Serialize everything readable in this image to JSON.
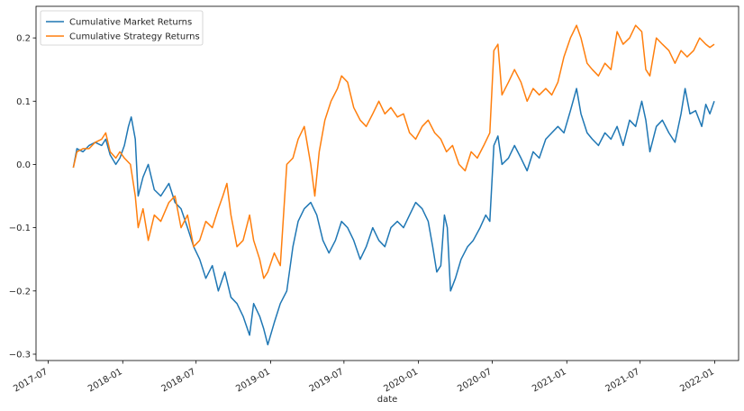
{
  "chart_data": {
    "type": "line",
    "title": "",
    "xlabel": "date",
    "ylabel": "",
    "xlim": [
      "2017-06-01",
      "2022-03-01"
    ],
    "ylim": [
      -0.31,
      0.25
    ],
    "grid": false,
    "legend_position": "top-left",
    "x_ticks": [
      {
        "date": "2017-07-01",
        "label": "2017-07"
      },
      {
        "date": "2018-01-01",
        "label": "2018-01"
      },
      {
        "date": "2018-07-01",
        "label": "2018-07"
      },
      {
        "date": "2019-01-01",
        "label": "2019-01"
      },
      {
        "date": "2019-07-01",
        "label": "2019-07"
      },
      {
        "date": "2020-01-01",
        "label": "2020-01"
      },
      {
        "date": "2020-07-01",
        "label": "2020-07"
      },
      {
        "date": "2021-01-01",
        "label": "2021-01"
      },
      {
        "date": "2021-07-01",
        "label": "2021-07"
      },
      {
        "date": "2022-01-01",
        "label": "2022-01"
      }
    ],
    "y_ticks": [
      {
        "value": 0.2,
        "label": "0.2"
      },
      {
        "value": 0.1,
        "label": "0.1"
      },
      {
        "value": 0.0,
        "label": "0.0"
      },
      {
        "value": -0.1,
        "label": "−0.1"
      },
      {
        "value": -0.2,
        "label": "−0.2"
      },
      {
        "value": -0.3,
        "label": "−0.3"
      }
    ],
    "series": [
      {
        "name": "Cumulative Market Returns",
        "color": "#1f77b4",
        "points": [
          [
            "2017-09-01",
            -0.005
          ],
          [
            "2017-09-10",
            0.025
          ],
          [
            "2017-09-25",
            0.02
          ],
          [
            "2017-10-10",
            0.03
          ],
          [
            "2017-10-25",
            0.035
          ],
          [
            "2017-11-10",
            0.03
          ],
          [
            "2017-11-20",
            0.04
          ],
          [
            "2017-12-01",
            0.015
          ],
          [
            "2017-12-15",
            0.0
          ],
          [
            "2017-12-25",
            0.01
          ],
          [
            "2018-01-05",
            0.03
          ],
          [
            "2018-01-15",
            0.06
          ],
          [
            "2018-01-22",
            0.075
          ],
          [
            "2018-02-01",
            0.04
          ],
          [
            "2018-02-08",
            -0.05
          ],
          [
            "2018-02-20",
            -0.02
          ],
          [
            "2018-03-05",
            0.0
          ],
          [
            "2018-03-20",
            -0.04
          ],
          [
            "2018-04-05",
            -0.05
          ],
          [
            "2018-04-25",
            -0.03
          ],
          [
            "2018-05-10",
            -0.06
          ],
          [
            "2018-05-25",
            -0.07
          ],
          [
            "2018-06-10",
            -0.1
          ],
          [
            "2018-06-25",
            -0.13
          ],
          [
            "2018-07-10",
            -0.15
          ],
          [
            "2018-07-25",
            -0.18
          ],
          [
            "2018-08-10",
            -0.16
          ],
          [
            "2018-08-25",
            -0.2
          ],
          [
            "2018-09-10",
            -0.17
          ],
          [
            "2018-09-25",
            -0.21
          ],
          [
            "2018-10-10",
            -0.22
          ],
          [
            "2018-10-25",
            -0.24
          ],
          [
            "2018-11-10",
            -0.27
          ],
          [
            "2018-11-20",
            -0.22
          ],
          [
            "2018-12-05",
            -0.24
          ],
          [
            "2018-12-15",
            -0.26
          ],
          [
            "2018-12-25",
            -0.285
          ],
          [
            "2019-01-10",
            -0.25
          ],
          [
            "2019-01-25",
            -0.22
          ],
          [
            "2019-02-10",
            -0.2
          ],
          [
            "2019-02-25",
            -0.13
          ],
          [
            "2019-03-10",
            -0.09
          ],
          [
            "2019-03-25",
            -0.07
          ],
          [
            "2019-04-10",
            -0.06
          ],
          [
            "2019-04-25",
            -0.08
          ],
          [
            "2019-05-10",
            -0.12
          ],
          [
            "2019-05-25",
            -0.14
          ],
          [
            "2019-06-10",
            -0.12
          ],
          [
            "2019-06-25",
            -0.09
          ],
          [
            "2019-07-10",
            -0.1
          ],
          [
            "2019-07-25",
            -0.12
          ],
          [
            "2019-08-10",
            -0.15
          ],
          [
            "2019-08-25",
            -0.13
          ],
          [
            "2019-09-10",
            -0.1
          ],
          [
            "2019-09-25",
            -0.12
          ],
          [
            "2019-10-10",
            -0.13
          ],
          [
            "2019-10-25",
            -0.1
          ],
          [
            "2019-11-10",
            -0.09
          ],
          [
            "2019-11-25",
            -0.1
          ],
          [
            "2019-12-10",
            -0.08
          ],
          [
            "2019-12-25",
            -0.06
          ],
          [
            "2020-01-10",
            -0.07
          ],
          [
            "2020-01-25",
            -0.09
          ],
          [
            "2020-02-05",
            -0.13
          ],
          [
            "2020-02-15",
            -0.17
          ],
          [
            "2020-02-25",
            -0.16
          ],
          [
            "2020-03-05",
            -0.08
          ],
          [
            "2020-03-12",
            -0.1
          ],
          [
            "2020-03-20",
            -0.2
          ],
          [
            "2020-04-01",
            -0.18
          ],
          [
            "2020-04-15",
            -0.15
          ],
          [
            "2020-05-01",
            -0.13
          ],
          [
            "2020-05-15",
            -0.12
          ],
          [
            "2020-06-01",
            -0.1
          ],
          [
            "2020-06-15",
            -0.08
          ],
          [
            "2020-06-25",
            -0.09
          ],
          [
            "2020-07-05",
            0.03
          ],
          [
            "2020-07-15",
            0.045
          ],
          [
            "2020-07-25",
            0.0
          ],
          [
            "2020-08-10",
            0.01
          ],
          [
            "2020-08-25",
            0.03
          ],
          [
            "2020-09-10",
            0.01
          ],
          [
            "2020-09-25",
            -0.01
          ],
          [
            "2020-10-10",
            0.02
          ],
          [
            "2020-10-25",
            0.01
          ],
          [
            "2020-11-10",
            0.04
          ],
          [
            "2020-11-25",
            0.05
          ],
          [
            "2020-12-10",
            0.06
          ],
          [
            "2020-12-25",
            0.05
          ],
          [
            "2021-01-10",
            0.085
          ],
          [
            "2021-01-25",
            0.12
          ],
          [
            "2021-02-05",
            0.08
          ],
          [
            "2021-02-20",
            0.05
          ],
          [
            "2021-03-05",
            0.04
          ],
          [
            "2021-03-20",
            0.03
          ],
          [
            "2021-04-05",
            0.05
          ],
          [
            "2021-04-20",
            0.04
          ],
          [
            "2021-05-05",
            0.06
          ],
          [
            "2021-05-20",
            0.03
          ],
          [
            "2021-06-05",
            0.07
          ],
          [
            "2021-06-20",
            0.06
          ],
          [
            "2021-07-05",
            0.1
          ],
          [
            "2021-07-15",
            0.07
          ],
          [
            "2021-07-25",
            0.02
          ],
          [
            "2021-08-10",
            0.06
          ],
          [
            "2021-08-25",
            0.07
          ],
          [
            "2021-09-10",
            0.05
          ],
          [
            "2021-09-25",
            0.035
          ],
          [
            "2021-10-10",
            0.08
          ],
          [
            "2021-10-20",
            0.12
          ],
          [
            "2021-11-01",
            0.08
          ],
          [
            "2021-11-15",
            0.085
          ],
          [
            "2021-11-30",
            0.06
          ],
          [
            "2021-12-10",
            0.095
          ],
          [
            "2021-12-20",
            0.08
          ],
          [
            "2021-12-31",
            0.1
          ]
        ]
      },
      {
        "name": "Cumulative Strategy Returns",
        "color": "#ff7f0e",
        "points": [
          [
            "2017-09-01",
            -0.005
          ],
          [
            "2017-09-10",
            0.02
          ],
          [
            "2017-09-25",
            0.025
          ],
          [
            "2017-10-10",
            0.025
          ],
          [
            "2017-10-25",
            0.035
          ],
          [
            "2017-11-10",
            0.04
          ],
          [
            "2017-11-20",
            0.05
          ],
          [
            "2017-12-01",
            0.02
          ],
          [
            "2017-12-15",
            0.01
          ],
          [
            "2017-12-25",
            0.02
          ],
          [
            "2018-01-05",
            0.01
          ],
          [
            "2018-01-20",
            0.0
          ],
          [
            "2018-02-01",
            -0.05
          ],
          [
            "2018-02-08",
            -0.1
          ],
          [
            "2018-02-20",
            -0.07
          ],
          [
            "2018-03-05",
            -0.12
          ],
          [
            "2018-03-20",
            -0.08
          ],
          [
            "2018-04-05",
            -0.09
          ],
          [
            "2018-04-25",
            -0.06
          ],
          [
            "2018-05-10",
            -0.05
          ],
          [
            "2018-05-25",
            -0.1
          ],
          [
            "2018-06-10",
            -0.08
          ],
          [
            "2018-06-25",
            -0.13
          ],
          [
            "2018-07-10",
            -0.12
          ],
          [
            "2018-07-25",
            -0.09
          ],
          [
            "2018-08-10",
            -0.1
          ],
          [
            "2018-08-25",
            -0.07
          ],
          [
            "2018-09-05",
            -0.05
          ],
          [
            "2018-09-15",
            -0.03
          ],
          [
            "2018-09-25",
            -0.08
          ],
          [
            "2018-10-10",
            -0.13
          ],
          [
            "2018-10-25",
            -0.12
          ],
          [
            "2018-11-10",
            -0.08
          ],
          [
            "2018-11-20",
            -0.12
          ],
          [
            "2018-12-05",
            -0.15
          ],
          [
            "2018-12-15",
            -0.18
          ],
          [
            "2018-12-25",
            -0.17
          ],
          [
            "2019-01-10",
            -0.14
          ],
          [
            "2019-01-25",
            -0.16
          ],
          [
            "2019-02-10",
            0.0
          ],
          [
            "2019-02-25",
            0.01
          ],
          [
            "2019-03-10",
            0.04
          ],
          [
            "2019-03-25",
            0.06
          ],
          [
            "2019-04-10",
            0.0
          ],
          [
            "2019-04-20",
            -0.05
          ],
          [
            "2019-05-01",
            0.02
          ],
          [
            "2019-05-15",
            0.07
          ],
          [
            "2019-05-30",
            0.1
          ],
          [
            "2019-06-15",
            0.12
          ],
          [
            "2019-06-25",
            0.14
          ],
          [
            "2019-07-10",
            0.13
          ],
          [
            "2019-07-25",
            0.09
          ],
          [
            "2019-08-10",
            0.07
          ],
          [
            "2019-08-25",
            0.06
          ],
          [
            "2019-09-10",
            0.08
          ],
          [
            "2019-09-25",
            0.1
          ],
          [
            "2019-10-10",
            0.08
          ],
          [
            "2019-10-25",
            0.09
          ],
          [
            "2019-11-10",
            0.075
          ],
          [
            "2019-11-25",
            0.08
          ],
          [
            "2019-12-10",
            0.05
          ],
          [
            "2019-12-25",
            0.04
          ],
          [
            "2020-01-10",
            0.06
          ],
          [
            "2020-01-25",
            0.07
          ],
          [
            "2020-02-10",
            0.05
          ],
          [
            "2020-02-25",
            0.04
          ],
          [
            "2020-03-10",
            0.02
          ],
          [
            "2020-03-25",
            0.03
          ],
          [
            "2020-04-10",
            0.0
          ],
          [
            "2020-04-25",
            -0.01
          ],
          [
            "2020-05-10",
            0.02
          ],
          [
            "2020-05-25",
            0.01
          ],
          [
            "2020-06-10",
            0.03
          ],
          [
            "2020-06-25",
            0.05
          ],
          [
            "2020-07-05",
            0.18
          ],
          [
            "2020-07-15",
            0.19
          ],
          [
            "2020-07-25",
            0.11
          ],
          [
            "2020-08-10",
            0.13
          ],
          [
            "2020-08-25",
            0.15
          ],
          [
            "2020-09-10",
            0.13
          ],
          [
            "2020-09-25",
            0.1
          ],
          [
            "2020-10-10",
            0.12
          ],
          [
            "2020-10-25",
            0.11
          ],
          [
            "2020-11-10",
            0.12
          ],
          [
            "2020-11-25",
            0.11
          ],
          [
            "2020-12-10",
            0.13
          ],
          [
            "2020-12-25",
            0.17
          ],
          [
            "2021-01-10",
            0.2
          ],
          [
            "2021-01-25",
            0.22
          ],
          [
            "2021-02-05",
            0.2
          ],
          [
            "2021-02-20",
            0.16
          ],
          [
            "2021-03-05",
            0.15
          ],
          [
            "2021-03-20",
            0.14
          ],
          [
            "2021-04-05",
            0.16
          ],
          [
            "2021-04-20",
            0.15
          ],
          [
            "2021-05-05",
            0.21
          ],
          [
            "2021-05-20",
            0.19
          ],
          [
            "2021-06-05",
            0.2
          ],
          [
            "2021-06-20",
            0.22
          ],
          [
            "2021-07-05",
            0.21
          ],
          [
            "2021-07-15",
            0.15
          ],
          [
            "2021-07-25",
            0.14
          ],
          [
            "2021-08-10",
            0.2
          ],
          [
            "2021-08-25",
            0.19
          ],
          [
            "2021-09-10",
            0.18
          ],
          [
            "2021-09-25",
            0.16
          ],
          [
            "2021-10-10",
            0.18
          ],
          [
            "2021-10-25",
            0.17
          ],
          [
            "2021-11-10",
            0.18
          ],
          [
            "2021-11-25",
            0.2
          ],
          [
            "2021-12-10",
            0.19
          ],
          [
            "2021-12-20",
            0.185
          ],
          [
            "2021-12-31",
            0.19
          ]
        ]
      }
    ]
  }
}
